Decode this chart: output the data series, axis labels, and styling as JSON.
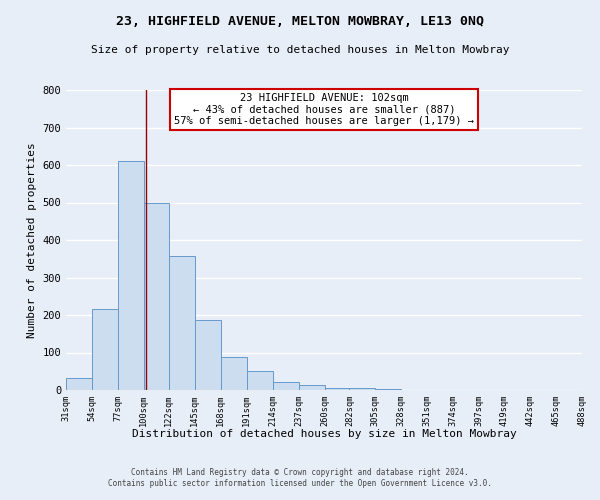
{
  "title": "23, HIGHFIELD AVENUE, MELTON MOWBRAY, LE13 0NQ",
  "subtitle": "Size of property relative to detached houses in Melton Mowbray",
  "xlabel": "Distribution of detached houses by size in Melton Mowbray",
  "ylabel": "Number of detached properties",
  "bins": [
    31,
    54,
    77,
    100,
    122,
    145,
    168,
    191,
    214,
    237,
    260,
    282,
    305,
    328,
    351,
    374,
    397,
    419,
    442,
    465,
    488
  ],
  "counts": [
    33,
    217,
    610,
    500,
    357,
    188,
    87,
    50,
    22,
    13,
    5,
    5,
    3,
    1,
    0,
    0,
    0,
    0,
    0,
    0
  ],
  "property_size": 102,
  "annotation_line1": "23 HIGHFIELD AVENUE: 102sqm",
  "annotation_line2": "← 43% of detached houses are smaller (887)",
  "annotation_line3": "57% of semi-detached houses are larger (1,179) →",
  "bar_facecolor": "#ccddf0",
  "bar_edgecolor": "#6699cc",
  "vline_color": "#990000",
  "annotation_box_edgecolor": "#cc0000",
  "annotation_box_facecolor": "#ffffff",
  "ylim": [
    0,
    800
  ],
  "yticks": [
    0,
    100,
    200,
    300,
    400,
    500,
    600,
    700,
    800
  ],
  "bg_color": "#e8eef8",
  "grid_color": "#ffffff",
  "footer_line1": "Contains HM Land Registry data © Crown copyright and database right 2024.",
  "footer_line2": "Contains public sector information licensed under the Open Government Licence v3.0."
}
